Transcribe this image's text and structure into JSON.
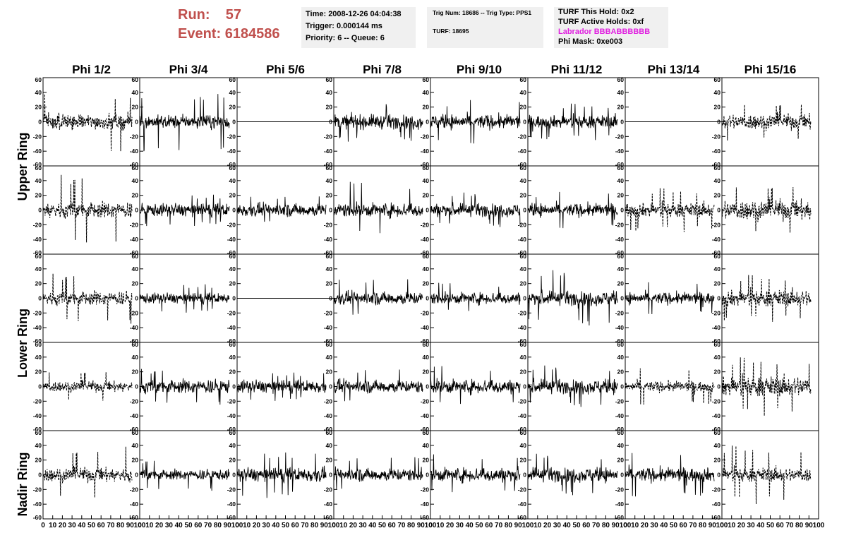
{
  "header": {
    "run_label": "Run:",
    "run_value": "57",
    "event_label": "Event:",
    "event_value": "6184586"
  },
  "info_time": {
    "time": "Time: 2008-12-26 04:04:38",
    "trigger": "Trigger: 0.000144 ms",
    "priority": "Priority: 6 -- Queue: 6"
  },
  "info_trig": {
    "trig_line": "Trig Num: 18686 -- Trig Type: PPS1",
    "turf_line": "TURF: 18695"
  },
  "info_turf": {
    "this_hold": "TURF This Hold: 0x2",
    "active_holds": "TURF Active Holds: 0xf",
    "labrador": "Labrador BBBABBBBBB",
    "phi_mask": "Phi Mask: 0xe003",
    "labrador_color": "#e020e0"
  },
  "chart_data": {
    "type": "line",
    "column_titles": [
      "Phi 1/2",
      "Phi 3/4",
      "Phi 5/6",
      "Phi 7/8",
      "Phi 9/10",
      "Phi 11/12",
      "Phi 13/14",
      "Phi 15/16"
    ],
    "row_labels": [
      "Upper Ring",
      "Lower Ring",
      "Nadir Ring"
    ],
    "xlim": [
      0,
      100
    ],
    "ylim": [
      -60,
      60
    ],
    "x_ticks": [
      0,
      10,
      20,
      30,
      40,
      50,
      60,
      70,
      80,
      90,
      100
    ],
    "x_tick_labels": [
      "0",
      "10",
      "20",
      "30",
      "40",
      "50",
      "60",
      "70",
      "80",
      "90",
      "100"
    ],
    "y_ticks": [
      -60,
      -40,
      -20,
      0,
      20,
      40,
      60
    ],
    "y_tick_labels": [
      "-60",
      "-40",
      "-20",
      "0",
      "20",
      "40",
      "60"
    ],
    "waveform_samples": 260,
    "x_end": 92,
    "panels": [
      [
        {
          "style": "dashed",
          "amp": 13,
          "peak": 40
        },
        {
          "style": "solid",
          "amp": 11,
          "peak": 42
        },
        {
          "style": "flat",
          "amp": 0,
          "peak": 0
        },
        {
          "style": "solid",
          "amp": 12,
          "peak": 28
        },
        {
          "style": "solid",
          "amp": 12,
          "peak": 30
        },
        {
          "style": "solid",
          "amp": 11,
          "peak": 25
        },
        {
          "style": "flat",
          "amp": 0,
          "peak": 0
        },
        {
          "style": "dashed",
          "amp": 13,
          "peak": 30
        }
      ],
      [
        {
          "style": "dashed",
          "amp": 14,
          "peak": 50
        },
        {
          "style": "solid",
          "amp": 11,
          "peak": 22
        },
        {
          "style": "solid",
          "amp": 11,
          "peak": 20
        },
        {
          "style": "solid",
          "amp": 12,
          "peak": 40
        },
        {
          "style": "solid",
          "amp": 11,
          "peak": 25
        },
        {
          "style": "solid",
          "amp": 11,
          "peak": 25
        },
        {
          "style": "dashed",
          "amp": 12,
          "peak": 30
        },
        {
          "style": "dashed",
          "amp": 17,
          "peak": 40
        }
      ],
      [
        {
          "style": "dashed",
          "amp": 12,
          "peak": 35
        },
        {
          "style": "solid",
          "amp": 9,
          "peak": 20
        },
        {
          "style": "flat",
          "amp": 0,
          "peak": 0
        },
        {
          "style": "solid",
          "amp": 11,
          "peak": 28
        },
        {
          "style": "solid",
          "amp": 10,
          "peak": 22
        },
        {
          "style": "solid",
          "amp": 12,
          "peak": 40
        },
        {
          "style": "solid",
          "amp": 10,
          "peak": 22
        },
        {
          "style": "dashed",
          "amp": 14,
          "peak": 32
        }
      ],
      [
        {
          "style": "dashed",
          "amp": 9,
          "peak": 25
        },
        {
          "style": "solid",
          "amp": 12,
          "peak": 25
        },
        {
          "style": "solid",
          "amp": 11,
          "peak": 20
        },
        {
          "style": "solid",
          "amp": 11,
          "peak": 25
        },
        {
          "style": "solid",
          "amp": 12,
          "peak": 30
        },
        {
          "style": "solid",
          "amp": 12,
          "peak": 30
        },
        {
          "style": "dashed",
          "amp": 9,
          "peak": 25
        },
        {
          "style": "dashed",
          "amp": 17,
          "peak": 40
        }
      ],
      [
        {
          "style": "dashed",
          "amp": 12,
          "peak": 40
        },
        {
          "style": "solid",
          "amp": 9,
          "peak": 22
        },
        {
          "style": "solid",
          "amp": 12,
          "peak": 32
        },
        {
          "style": "solid",
          "amp": 11,
          "peak": 25
        },
        {
          "style": "solid",
          "amp": 12,
          "peak": 30
        },
        {
          "style": "solid",
          "amp": 12,
          "peak": 30
        },
        {
          "style": "solid",
          "amp": 12,
          "peak": 30
        },
        {
          "style": "dashed",
          "amp": 12,
          "peak": 40
        }
      ]
    ]
  }
}
